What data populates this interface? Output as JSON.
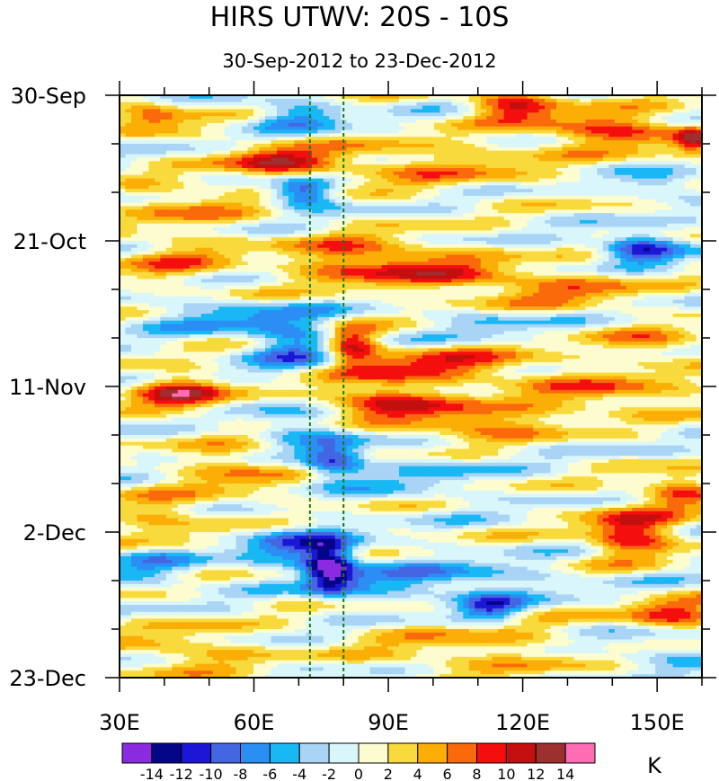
{
  "chart_data": {
    "type": "heatmap",
    "title": "HIRS UTWV: 20S - 10S",
    "subtitle": "30-Sep-2012 to 23-Dec-2012",
    "xlabel": "",
    "ylabel": "",
    "x_range": [
      30,
      160
    ],
    "x_ticks": [
      {
        "value": 30,
        "label": "30E"
      },
      {
        "value": 60,
        "label": "60E"
      },
      {
        "value": 90,
        "label": "90E"
      },
      {
        "value": 120,
        "label": "120E"
      },
      {
        "value": 150,
        "label": "150E"
      }
    ],
    "y_range_days": [
      0,
      84
    ],
    "y_ticks": [
      {
        "day": 0,
        "label": "30-Sep"
      },
      {
        "day": 21,
        "label": "21-Oct"
      },
      {
        "day": 42,
        "label": "11-Nov"
      },
      {
        "day": 63,
        "label": "2-Dec"
      },
      {
        "day": 84,
        "label": "23-Dec"
      }
    ],
    "reference_lines_lon": [
      72.5,
      80
    ],
    "colorbar": {
      "unit": "K",
      "colors": [
        "#8a2be2",
        "#050588",
        "#1c16d6",
        "#4466e2",
        "#2a8ef5",
        "#19b8f5",
        "#a9d4f5",
        "#d9f7fb",
        "#fdfccf",
        "#f8da3c",
        "#fbae05",
        "#fa6a0a",
        "#f50e0e",
        "#c40f0f",
        "#9e2f2f",
        "#fe6db4"
      ],
      "levels": [
        -14,
        -12,
        -10,
        -8,
        -6,
        -4,
        -2,
        0,
        2,
        4,
        6,
        8,
        10,
        12,
        14
      ]
    },
    "anomaly_features": [
      {
        "lon": 37,
        "day": 3,
        "value": 8,
        "sx": 6,
        "sy": 1.6
      },
      {
        "lon": 70,
        "day": 3,
        "value": -7,
        "sx": 7,
        "sy": 1.5
      },
      {
        "lon": 118,
        "day": 1.5,
        "value": 10,
        "sx": 7,
        "sy": 1.5
      },
      {
        "lon": 140,
        "day": 5,
        "value": 9,
        "sx": 12,
        "sy": 1.8
      },
      {
        "lon": 158,
        "day": 6.5,
        "value": 9,
        "sx": 3,
        "sy": 1.4
      },
      {
        "lon": 65,
        "day": 9.5,
        "value": 9,
        "sx": 8,
        "sy": 1.6
      },
      {
        "lon": 71,
        "day": 14,
        "value": -12,
        "sx": 5,
        "sy": 1.4
      },
      {
        "lon": 97,
        "day": 10,
        "value": 5,
        "sx": 20,
        "sy": 2.5
      },
      {
        "lon": 45,
        "day": 16,
        "value": 5,
        "sx": 10,
        "sy": 2.5
      },
      {
        "lon": 152,
        "day": 13,
        "value": -6,
        "sx": 6,
        "sy": 1.2
      },
      {
        "lon": 146,
        "day": 22,
        "value": -11,
        "sx": 6,
        "sy": 1.6
      },
      {
        "lon": 85,
        "day": 24,
        "value": 9,
        "sx": 12,
        "sy": 2.5
      },
      {
        "lon": 42,
        "day": 24,
        "value": 5,
        "sx": 10,
        "sy": 2.5
      },
      {
        "lon": 107,
        "day": 26,
        "value": 6,
        "sx": 9,
        "sy": 2
      },
      {
        "lon": 130,
        "day": 28,
        "value": 6,
        "sx": 12,
        "sy": 2
      },
      {
        "lon": 56,
        "day": 32,
        "value": -6,
        "sx": 14,
        "sy": 1.6
      },
      {
        "lon": 70,
        "day": 37,
        "value": -9,
        "sx": 7,
        "sy": 2.5
      },
      {
        "lon": 112,
        "day": 33,
        "value": -4,
        "sx": 8,
        "sy": 1.4
      },
      {
        "lon": 82,
        "day": 36,
        "value": 11,
        "sx": 4,
        "sy": 2
      },
      {
        "lon": 100,
        "day": 39,
        "value": 8,
        "sx": 18,
        "sy": 1.8
      },
      {
        "lon": 150,
        "day": 36,
        "value": 6,
        "sx": 8,
        "sy": 1.5
      },
      {
        "lon": 44,
        "day": 43,
        "value": 11,
        "sx": 7,
        "sy": 1.8
      },
      {
        "lon": 87,
        "day": 44,
        "value": 9,
        "sx": 10,
        "sy": 2
      },
      {
        "lon": 110,
        "day": 47,
        "value": 8,
        "sx": 12,
        "sy": 1.8
      },
      {
        "lon": 140,
        "day": 43,
        "value": 6,
        "sx": 14,
        "sy": 2
      },
      {
        "lon": 70,
        "day": 48,
        "value": -5,
        "sx": 8,
        "sy": 2.5
      },
      {
        "lon": 78,
        "day": 53,
        "value": -11,
        "sx": 5,
        "sy": 2
      },
      {
        "lon": 57,
        "day": 54,
        "value": 5,
        "sx": 10,
        "sy": 3
      },
      {
        "lon": 100,
        "day": 55,
        "value": -3,
        "sx": 10,
        "sy": 2.5
      },
      {
        "lon": 155,
        "day": 57,
        "value": 8,
        "sx": 6,
        "sy": 1.8
      },
      {
        "lon": 40,
        "day": 61,
        "value": 5,
        "sx": 8,
        "sy": 2.5
      },
      {
        "lon": 144,
        "day": 63,
        "value": 11,
        "sx": 7,
        "sy": 2.5
      },
      {
        "lon": 68,
        "day": 65,
        "value": -7,
        "sx": 9,
        "sy": 2
      },
      {
        "lon": 77,
        "day": 68,
        "value": -15,
        "sx": 4,
        "sy": 2.5
      },
      {
        "lon": 38,
        "day": 68,
        "value": -5,
        "sx": 7,
        "sy": 2
      },
      {
        "lon": 100,
        "day": 70,
        "value": -6,
        "sx": 18,
        "sy": 2
      },
      {
        "lon": 113,
        "day": 74,
        "value": -9,
        "sx": 5,
        "sy": 1.4
      },
      {
        "lon": 154,
        "day": 75,
        "value": 9,
        "sx": 8,
        "sy": 1.5
      },
      {
        "lon": 45,
        "day": 80,
        "value": 5,
        "sx": 10,
        "sy": 2.5
      },
      {
        "lon": 110,
        "day": 80,
        "value": 4,
        "sx": 20,
        "sy": 3
      },
      {
        "lon": 150,
        "day": 80,
        "value": -4,
        "sx": 10,
        "sy": 2
      }
    ]
  }
}
